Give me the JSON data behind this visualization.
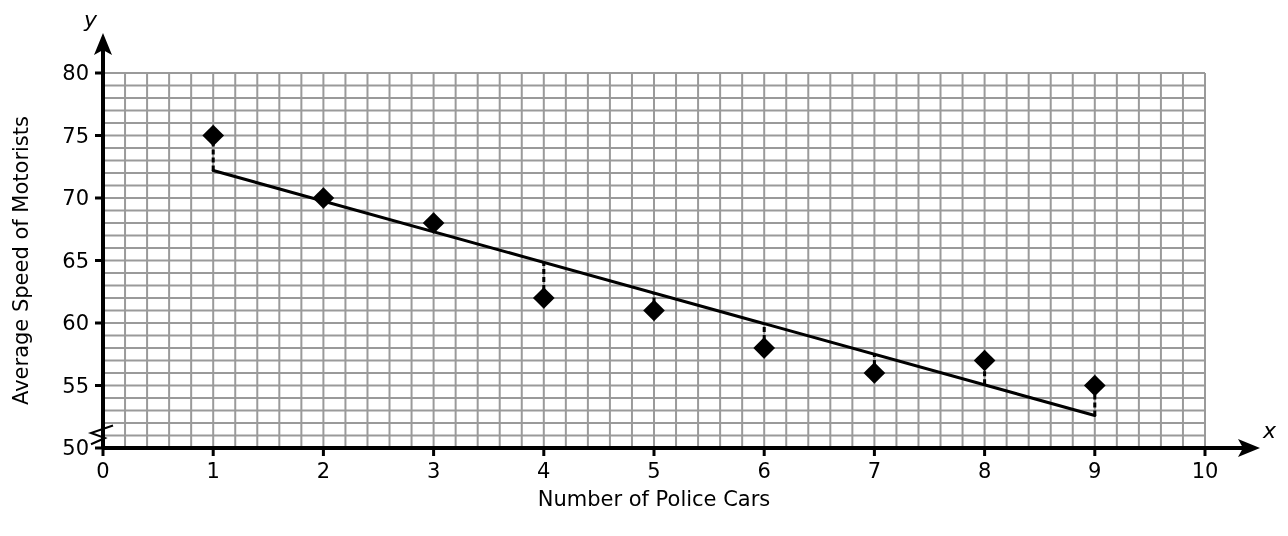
{
  "chart_data": {
    "type": "scatter",
    "xlabel": "Number of Police Cars",
    "ylabel": "Average Speed of Motorists",
    "annotations": [
      "y",
      "x"
    ],
    "xlim": [
      0,
      10
    ],
    "ylim": [
      50,
      80
    ],
    "xticks": [
      0,
      {
        "value": 0.2,
        "label": null
      },
      {
        "value": 0.4,
        "label": null
      },
      {
        "value": 0.6,
        "label": null
      },
      {
        "value": 0.8,
        "label": null
      },
      1,
      {
        "value": 1.2,
        "label": null
      },
      {
        "value": 1.4,
        "label": null
      },
      {
        "value": 1.6,
        "label": null
      },
      {
        "value": 1.8,
        "label": null
      },
      2,
      {
        "value": 2.2,
        "label": null
      },
      {
        "value": 2.4,
        "label": null
      },
      {
        "value": 2.6,
        "label": null
      },
      {
        "value": 2.8,
        "label": null
      },
      3,
      {
        "value": 3.2,
        "label": null
      },
      {
        "value": 3.4,
        "label": null
      },
      {
        "value": 3.6,
        "label": null
      },
      {
        "value": 3.8,
        "label": null
      },
      4,
      {
        "value": 4.2,
        "label": null
      },
      {
        "value": 4.4,
        "label": null
      },
      {
        "value": 4.6,
        "label": null
      },
      {
        "value": 4.8,
        "label": null
      },
      5,
      {
        "value": 5.2,
        "label": null
      },
      {
        "value": 5.4,
        "label": null
      },
      {
        "value": 5.6,
        "label": null
      },
      {
        "value": 5.8,
        "label": null
      },
      6,
      {
        "value": 6.2,
        "label": null
      },
      {
        "value": 6.4,
        "label": null
      },
      {
        "value": 6.6,
        "label": null
      },
      {
        "value": 6.8,
        "label": null
      },
      7,
      {
        "value": 7.2,
        "label": null
      },
      {
        "value": 7.4,
        "label": null
      },
      {
        "value": 7.6,
        "label": null
      },
      {
        "value": 7.8,
        "label": null
      },
      8,
      {
        "value": 8.2,
        "label": null
      },
      {
        "value": 8.4,
        "label": null
      },
      {
        "value": 8.6,
        "label": null
      },
      {
        "value": 8.8,
        "label": null
      },
      9,
      {
        "value": 9.2,
        "label": null
      },
      {
        "value": 9.4,
        "label": null
      },
      {
        "value": 9.6,
        "label": null
      },
      {
        "value": 9.8,
        "label": null
      },
      10
    ],
    "yticks": [
      50,
      {
        "value": 51,
        "label": null
      },
      {
        "value": 52,
        "label": null
      },
      {
        "value": 53,
        "label": null
      },
      {
        "value": 54,
        "label": null
      },
      55,
      {
        "value": 56,
        "label": null
      },
      {
        "value": 57,
        "label": null
      },
      {
        "value": 58,
        "label": null
      },
      {
        "value": 59,
        "label": null
      },
      60,
      {
        "value": 61,
        "label": null
      },
      {
        "value": 62,
        "label": null
      },
      {
        "value": 63,
        "label": null
      },
      {
        "value": 64,
        "label": null
      },
      65,
      {
        "value": 66,
        "label": null
      },
      {
        "value": 67,
        "label": null
      },
      {
        "value": 68,
        "label": null
      },
      {
        "value": 69,
        "label": null
      },
      70,
      {
        "value": 71,
        "label": null
      },
      {
        "value": 72,
        "label": null
      },
      {
        "value": 73,
        "label": null
      },
      {
        "value": 74,
        "label": null
      },
      75,
      {
        "value": 76,
        "label": null
      },
      {
        "value": 77,
        "label": null
      },
      {
        "value": 78,
        "label": null
      },
      {
        "value": 79,
        "label": null
      },
      80
    ],
    "grid": true,
    "series": [
      {
        "marker": "diamond",
        "color": "#000000",
        "x": [
          1,
          2,
          3,
          4,
          5,
          6,
          7,
          8,
          9
        ],
        "values": [
          75,
          70,
          68,
          62,
          61,
          58,
          56,
          57,
          55
        ],
        "errors": [
          [
            72.2,
            75
          ],
          null,
          null,
          [
            62,
            64.9
          ],
          [
            61,
            62.4
          ],
          [
            58,
            60
          ],
          [
            56,
            57.5
          ],
          [
            55.1,
            57
          ],
          [
            52.6,
            55
          ]
        ]
      },
      {
        "type": "line",
        "marker": "none",
        "color": "#000000",
        "x": [
          1,
          9
        ],
        "values": [
          72.2,
          52.6
        ]
      }
    ]
  }
}
